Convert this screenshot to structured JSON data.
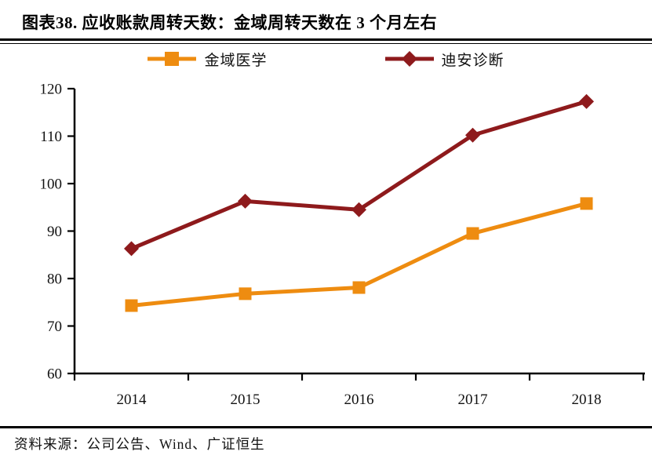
{
  "header": {
    "title": "图表38.  应收账款周转天数：金域周转天数在 3 个月左右"
  },
  "footer": {
    "source": "资料来源：公司公告、Wind、广证恒生"
  },
  "colors": {
    "jinyu_orange": "#EE8C10",
    "dian_dark_red": "#8E1A1C",
    "axis_black": "#000000",
    "text_black": "#111111"
  },
  "chart_data": {
    "type": "line",
    "title": "应收账款周转天数",
    "categories": [
      "2014",
      "2015",
      "2016",
      "2017",
      "2018"
    ],
    "series": [
      {
        "name": "金域医学",
        "color": "#EE8C10",
        "marker": "square",
        "values": [
          74.3,
          76.8,
          78.1,
          89.5,
          95.8
        ]
      },
      {
        "name": "迪安诊断",
        "color": "#8E1A1C",
        "marker": "diamond",
        "values": [
          86.3,
          96.3,
          94.5,
          110.2,
          117.3
        ]
      }
    ],
    "xlabel": "",
    "ylabel": "",
    "ylim": [
      60,
      120
    ],
    "yticks": [
      60,
      70,
      80,
      90,
      100,
      110,
      120
    ],
    "grid": false,
    "legend_position": "top-center"
  }
}
